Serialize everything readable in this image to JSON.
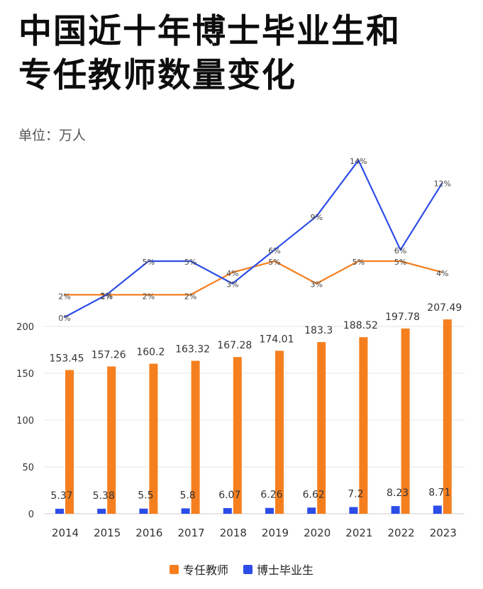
{
  "title_line1": "中国近十年博士毕业生和",
  "title_line2": "专任教师数量变化",
  "unit_label": "单位：万人",
  "colors": {
    "teachers": "#f57f1f",
    "phd": "#2d4de8",
    "grid": "#e6e6e6",
    "text": "#333333"
  },
  "chart_data": {
    "type": "bar",
    "categories": [
      "2014",
      "2015",
      "2016",
      "2017",
      "2018",
      "2019",
      "2020",
      "2021",
      "2022",
      "2023"
    ],
    "series": [
      {
        "name": "专任教师",
        "values": [
          153.45,
          157.26,
          160.2,
          163.32,
          167.28,
          174.01,
          183.3,
          188.52,
          197.78,
          207.49
        ],
        "labels": [
          "153.45",
          "157.26",
          "160.2",
          "163.32",
          "167.28",
          "174.01",
          "183.3",
          "188.52",
          "197.78",
          "207.49"
        ]
      },
      {
        "name": "博士毕业生",
        "values": [
          5.37,
          5.38,
          5.5,
          5.8,
          6.07,
          6.26,
          6.62,
          7.2,
          8.23,
          8.71
        ],
        "labels": [
          "5.37",
          "5.38",
          "5.5",
          "5.8",
          "6.07",
          "6.26",
          "6.62",
          "7.2",
          "8.23",
          "8.71"
        ]
      }
    ],
    "yticks": [
      "0",
      "50",
      "100",
      "150",
      "200"
    ],
    "ylim": [
      0,
      210
    ],
    "growth_lines": [
      {
        "series": "专任教师",
        "values": [
          2,
          2,
          2,
          2,
          4,
          5,
          3,
          5,
          5,
          4
        ],
        "labels": [
          "2%",
          "2%",
          "2%",
          "2%",
          "4%",
          "5%",
          "3%",
          "5%",
          "5%",
          "4%"
        ]
      },
      {
        "series": "博士毕业生",
        "values": [
          0,
          2,
          5,
          5,
          3,
          6,
          9,
          14,
          6,
          12
        ],
        "labels": [
          "0%",
          "2%",
          "5%",
          "5%",
          "3%",
          "6%",
          "9%",
          "14%",
          "6%",
          "12%"
        ]
      }
    ],
    "legend": "bottom-center"
  }
}
